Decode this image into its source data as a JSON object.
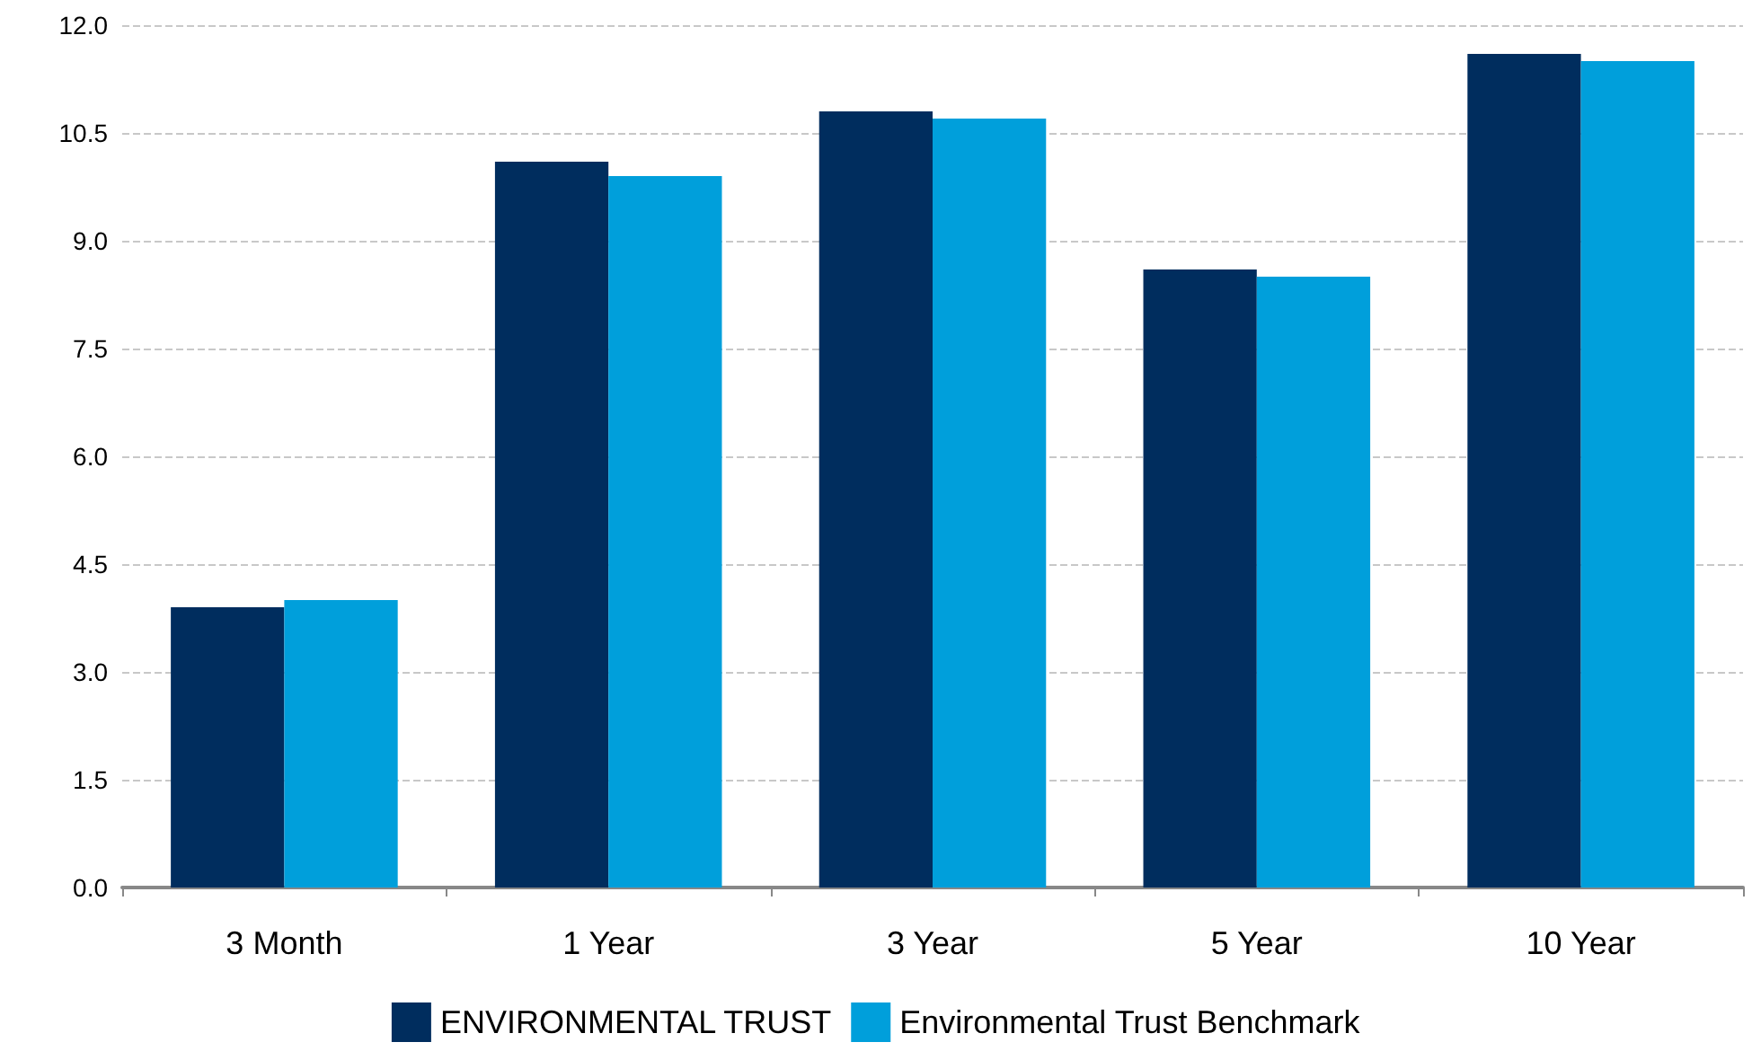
{
  "chart_data": {
    "type": "bar",
    "categories": [
      "3 Month",
      "1 Year",
      "3 Year",
      "5 Year",
      "10 Year"
    ],
    "series": [
      {
        "name": "ENVIRONMENTAL TRUST",
        "color": "#002d5e",
        "values": [
          3.9,
          10.1,
          10.8,
          8.6,
          11.6
        ]
      },
      {
        "name": "Environmental Trust Benchmark",
        "color": "#009fdb",
        "values": [
          4.0,
          9.9,
          10.7,
          8.5,
          11.5
        ]
      }
    ],
    "ylim": [
      0,
      12
    ],
    "yticks": [
      {
        "value": 0,
        "label": "0.0"
      },
      {
        "value": 1.5,
        "label": "1.5"
      },
      {
        "value": 3,
        "label": "3.0"
      },
      {
        "value": 4.5,
        "label": "4.5"
      },
      {
        "value": 6,
        "label": "6.0"
      },
      {
        "value": 7.5,
        "label": "7.5"
      },
      {
        "value": 9,
        "label": "9.0"
      },
      {
        "value": 10.5,
        "label": "10.5"
      },
      {
        "value": 12,
        "label": "12.0"
      }
    ],
    "grid": "y",
    "legend": "bottom"
  }
}
